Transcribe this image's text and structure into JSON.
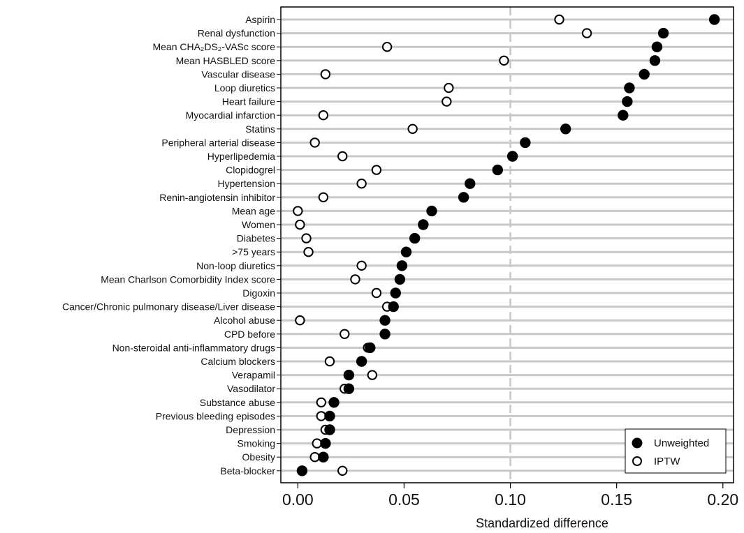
{
  "chart_data": {
    "type": "scatter",
    "xlabel": "Standardized difference",
    "xlim": [
      -0.008,
      0.205
    ],
    "xticks": [
      "0.00",
      "0.05",
      "0.10",
      "0.15",
      "0.20"
    ],
    "xtick_values": [
      0,
      0.05,
      0.1,
      0.15,
      0.2
    ],
    "reference_line": 0.1,
    "legend_position": "bottom-right",
    "categories": [
      "Aspirin",
      "Renal dysfunction",
      "Mean CHA₂DS₂-VASc score",
      "Mean HASBLED score",
      "Vascular disease",
      "Loop diuretics",
      "Heart failure",
      "Myocardial infarction",
      "Statins",
      "Peripheral arterial disease",
      "Hyperlipedemia",
      "Clopidogrel",
      "Hypertension",
      "Renin-angiotensin inhibitor",
      "Mean age",
      "Women",
      "Diabetes",
      ">75 years",
      "Non-loop diuretics",
      "Mean Charlson Comorbidity Index score",
      "Digoxin",
      "Cancer/Chronic pulmonary disease/Liver disease",
      "Alcohol abuse",
      "CPD before",
      "Non-steroidal anti-inflammatory drugs",
      "Calcium blockers",
      "Verapamil",
      "Vasodilator",
      "Substance abuse",
      "Previous bleeding episodes",
      "Depression",
      "Smoking",
      "Obesity",
      "Beta-blocker"
    ],
    "series": [
      {
        "name": "Unweighted",
        "marker": "filled",
        "values": [
          0.196,
          0.172,
          0.169,
          0.168,
          0.163,
          0.156,
          0.155,
          0.153,
          0.126,
          0.107,
          0.101,
          0.094,
          0.081,
          0.078,
          0.063,
          0.059,
          0.055,
          0.051,
          0.049,
          0.048,
          0.046,
          0.045,
          0.041,
          0.041,
          0.034,
          0.03,
          0.024,
          0.024,
          0.017,
          0.015,
          0.015,
          0.013,
          0.012,
          0.002
        ]
      },
      {
        "name": "IPTW",
        "marker": "hollow",
        "values": [
          0.123,
          0.136,
          0.042,
          0.097,
          0.013,
          0.071,
          0.07,
          0.012,
          0.054,
          0.008,
          0.021,
          0.037,
          0.03,
          0.012,
          0.0,
          0.001,
          0.004,
          0.005,
          0.03,
          0.027,
          0.037,
          0.042,
          0.001,
          0.022,
          0.033,
          0.015,
          0.035,
          0.022,
          0.011,
          0.011,
          0.013,
          0.009,
          0.008,
          0.021
        ]
      }
    ]
  }
}
